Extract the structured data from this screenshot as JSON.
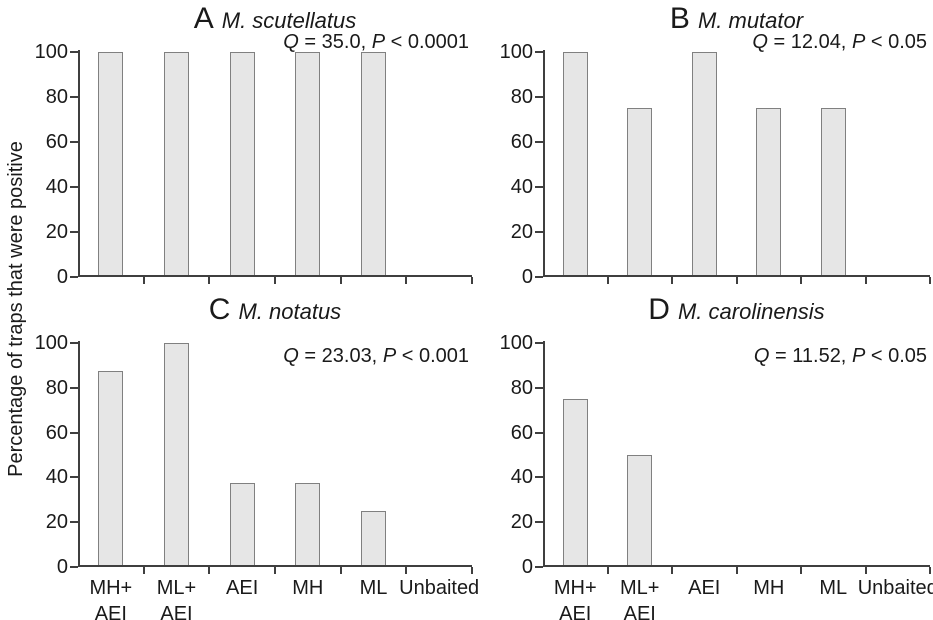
{
  "figure": {
    "ylabel": "Percentage of traps that were positive"
  },
  "chart_data": {
    "type": "bar",
    "ylabel": "Percentage of traps that were positive",
    "xlabel": "",
    "ylim": [
      0,
      100
    ],
    "y_ticks": [
      0,
      20,
      40,
      60,
      80,
      100
    ],
    "grid": false,
    "legend": "none",
    "categories": [
      "MH+AEI",
      "ML+AEI",
      "AEI",
      "MH",
      "ML",
      "Unbaited"
    ],
    "category_lines": [
      [
        "MH+",
        "AEI"
      ],
      [
        "ML+",
        "AEI"
      ],
      [
        "AEI"
      ],
      [
        "MH"
      ],
      [
        "ML"
      ],
      [
        "Unbaited"
      ]
    ],
    "bar_fill": "#e6e6e6",
    "bar_border": "#808080",
    "axis_color": "#3f3f3f",
    "text_color": "#1a1a1a",
    "panels": [
      {
        "letter": "A",
        "species": "M. scutellatus",
        "annotation": "Q = 35.0, P < 0.0001",
        "annotation_parts": [
          "Q",
          " = 35.0, ",
          "P",
          " < 0.0001"
        ],
        "values": [
          100,
          100,
          100,
          100,
          100,
          0
        ]
      },
      {
        "letter": "B",
        "species": "M. mutator",
        "annotation": "Q = 12.04, P < 0.05",
        "annotation_parts": [
          "Q",
          " = 12.04, ",
          "P",
          " < 0.05"
        ],
        "values": [
          100,
          75,
          100,
          75,
          75,
          0
        ]
      },
      {
        "letter": "C",
        "species": "M. notatus",
        "annotation": "Q = 23.03, P < 0.001",
        "annotation_parts": [
          "Q",
          " = 23.03, ",
          "P",
          " < 0.001"
        ],
        "values": [
          87.5,
          100,
          37.5,
          37.5,
          25,
          0
        ]
      },
      {
        "letter": "D",
        "species": "M. carolinensis",
        "annotation": "Q = 11.52, P < 0.05",
        "annotation_parts": [
          "Q",
          " = 11.52, ",
          "P",
          " < 0.05"
        ],
        "values": [
          75,
          50,
          0,
          0,
          0,
          0
        ]
      }
    ]
  }
}
